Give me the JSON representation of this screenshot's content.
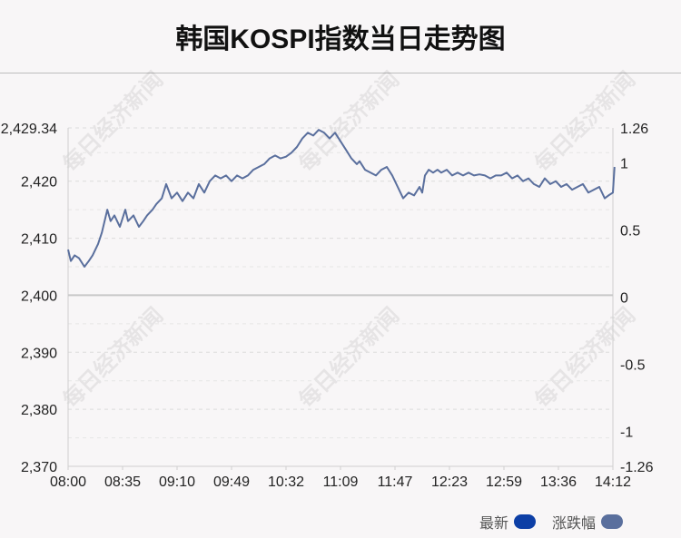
{
  "chart_data": {
    "type": "line",
    "title": "韩国KOSPI指数当日走势图",
    "left_axis": {
      "ticks": [
        2429.34,
        2420,
        2410,
        2400,
        2390,
        2380,
        2370
      ],
      "tick_labels": [
        "2,429.34",
        "2,420",
        "2,410",
        "2,400",
        "2,390",
        "2,380",
        "2,370"
      ],
      "range": [
        2370,
        2429.34
      ],
      "baseline": 2400
    },
    "right_axis": {
      "ticks": [
        1.26,
        1,
        0.5,
        0,
        -0.5,
        -1,
        -1.26
      ],
      "tick_labels": [
        "1.26",
        "1",
        "0.5",
        "0",
        "-0.5",
        "-1",
        "-1.26"
      ],
      "range": [
        -1.26,
        1.26
      ]
    },
    "x_tick_labels": [
      "08:00",
      "08:35",
      "09:10",
      "09:49",
      "10:32",
      "11:09",
      "11:47",
      "12:23",
      "12:59",
      "13:36",
      "14:12"
    ],
    "x_range": [
      0,
      10
    ],
    "series": [
      {
        "name": "最新",
        "color": "#5a6f9d",
        "x": [
          0,
          0.05,
          0.12,
          0.2,
          0.3,
          0.38,
          0.45,
          0.55,
          0.62,
          0.72,
          0.78,
          0.85,
          0.95,
          1.05,
          1.1,
          1.2,
          1.3,
          1.38,
          1.45,
          1.55,
          1.62,
          1.72,
          1.8,
          1.9,
          2.0,
          2.1,
          2.2,
          2.3,
          2.4,
          2.5,
          2.6,
          2.7,
          2.8,
          2.9,
          3.0,
          3.1,
          3.2,
          3.3,
          3.4,
          3.5,
          3.6,
          3.7,
          3.8,
          3.9,
          4.0,
          4.1,
          4.2,
          4.3,
          4.4,
          4.5,
          4.6,
          4.7,
          4.8,
          4.9,
          5.0,
          5.1,
          5.2,
          5.3,
          5.35,
          5.45,
          5.55,
          5.65,
          5.75,
          5.85,
          5.95,
          6.05,
          6.15,
          6.25,
          6.35,
          6.45,
          6.5,
          6.55,
          6.62,
          6.7,
          6.78,
          6.85,
          6.95,
          7.05,
          7.15,
          7.25,
          7.35,
          7.45,
          7.55,
          7.65,
          7.75,
          7.85,
          7.95,
          8.05,
          8.15,
          8.25,
          8.35,
          8.45,
          8.55,
          8.65,
          8.75,
          8.85,
          8.95,
          9.05,
          9.15,
          9.25,
          9.35,
          9.45,
          9.55,
          9.65,
          9.75,
          9.85,
          9.92,
          10.0,
          10.03
        ],
        "y": [
          2408,
          2406,
          2407,
          2406.5,
          2405,
          2406,
          2407,
          2409,
          2411,
          2415,
          2413,
          2414,
          2412,
          2415,
          2413,
          2414,
          2412,
          2413,
          2414,
          2415,
          2416,
          2417,
          2419.5,
          2417,
          2418,
          2416.5,
          2418,
          2417,
          2419.5,
          2418,
          2420,
          2421,
          2420.5,
          2421,
          2420,
          2421,
          2420.5,
          2421,
          2422,
          2422.5,
          2423,
          2424,
          2424.5,
          2424,
          2424.3,
          2425,
          2426,
          2427.5,
          2428.5,
          2428,
          2429,
          2428.5,
          2427.5,
          2428.5,
          2427,
          2425.5,
          2424,
          2423,
          2423.5,
          2422,
          2421.5,
          2421,
          2422,
          2422.5,
          2421,
          2419,
          2417,
          2418,
          2417.5,
          2419,
          2418,
          2421,
          2422,
          2421.5,
          2422,
          2421.5,
          2422,
          2421,
          2421.5,
          2421,
          2421.5,
          2421,
          2421.2,
          2421,
          2420.5,
          2421,
          2421,
          2421.5,
          2420.5,
          2421,
          2420,
          2420.5,
          2419.5,
          2419,
          2420.5,
          2419.5,
          2420,
          2419,
          2419.5,
          2418.5,
          2419,
          2419.5,
          2418,
          2418.5,
          2419,
          2417,
          2417.5,
          2418,
          2422.5
        ]
      }
    ],
    "legend": [
      {
        "label": "最新",
        "color": "#0d3fa6"
      },
      {
        "label": "涨跌幅",
        "color": "#5a6f9d"
      }
    ],
    "legend_position": "bottom-right",
    "grid": true,
    "watermark": "每日经济新闻"
  }
}
